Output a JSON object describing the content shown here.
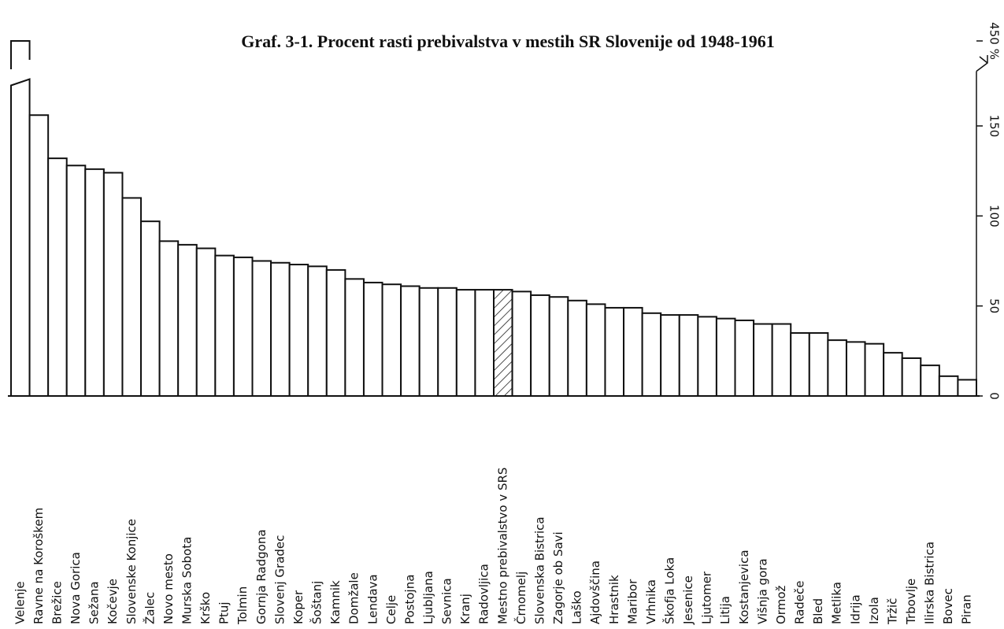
{
  "chart_data": {
    "type": "bar",
    "title": "Graf. 3-1. Procent rasti prebivalstva v mestih SR Slovenije od 1948-1961",
    "categories": [
      "Velenje",
      "Ravne na Koroškem",
      "Brežice",
      "Nova Gorica",
      "Sežana",
      "Kočevje",
      "Slovenske Konjice",
      "Žalec",
      "Novo mesto",
      "Murska Sobota",
      "Krško",
      "Ptuj",
      "Tolmin",
      "Gornja Radgona",
      "Slovenj Gradec",
      "Koper",
      "Šoštanj",
      "Kamnik",
      "Domžale",
      "Lendava",
      "Celje",
      "Postojna",
      "Ljubljana",
      "Sevnica",
      "Kranj",
      "Radovljica",
      "Mestno prebivalstvo v SRS",
      "Črnomelj",
      "Slovenska Bistrica",
      "Zagorje ob Savi",
      "Laško",
      "Ajdovščina",
      "Hrastnik",
      "Maribor",
      "Vrhnika",
      "Škofja Loka",
      "Jesenice",
      "Ljutomer",
      "Litija",
      "Kostanjevica",
      "Višnja gora",
      "Ormož",
      "Radeče",
      "Bled",
      "Metlika",
      "Idrija",
      "Izola",
      "Tržič",
      "Trbovlje",
      "Ilirska Bistrica",
      "Bovec",
      "Piran"
    ],
    "values": [
      450,
      156,
      132,
      128,
      126,
      124,
      110,
      97,
      86,
      84,
      82,
      78,
      77,
      75,
      74,
      73,
      72,
      70,
      65,
      63,
      62,
      61,
      60,
      60,
      59,
      59,
      59,
      58,
      56,
      55,
      53,
      51,
      49,
      49,
      46,
      45,
      45,
      44,
      43,
      42,
      40,
      40,
      35,
      35,
      31,
      30,
      29,
      24,
      21,
      17,
      11,
      9
    ],
    "color": "#ffffff",
    "hatched_index": 26,
    "ylim": [
      0,
      450
    ],
    "y_break": [
      176,
      440
    ],
    "yticks": [
      0,
      50,
      100,
      150,
      {
        "value": 450,
        "label": "450 %"
      }
    ],
    "axis_side": "right"
  }
}
